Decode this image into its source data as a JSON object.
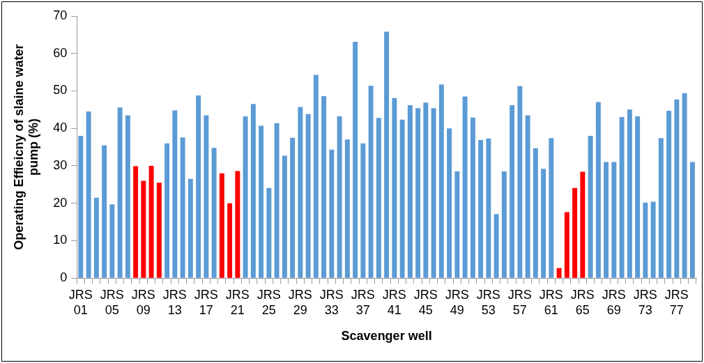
{
  "chart_data": {
    "type": "bar",
    "xlabel": "Scavenger well",
    "ylabel": "Operating Effieicny of slaine water pump (%)",
    "categories": [
      "JRS 01",
      null,
      null,
      null,
      "JRS 05",
      null,
      null,
      null,
      "JRS 09",
      null,
      null,
      null,
      "JRS 13",
      null,
      null,
      null,
      "JRS 17",
      null,
      null,
      null,
      "JRS 21",
      null,
      null,
      null,
      "JRS 25",
      null,
      null,
      null,
      "JRS 29",
      null,
      null,
      null,
      "JRS 33",
      null,
      null,
      null,
      "JRS 37",
      null,
      null,
      null,
      "JRS 41",
      null,
      null,
      null,
      "JRS 45",
      null,
      null,
      null,
      "JRS 49",
      null,
      null,
      null,
      "JRS 53",
      null,
      null,
      null,
      "JRS 57",
      null,
      null,
      null,
      "JRS 61",
      null,
      null,
      null,
      "JRS 65",
      null,
      null,
      null,
      "JRS 69",
      null,
      null,
      null,
      "JRS 73",
      null,
      null,
      null,
      "JRS 77",
      null,
      null
    ],
    "values": [
      38,
      44.5,
      21.5,
      35.5,
      19.7,
      45.6,
      43.5,
      29.9,
      26,
      30,
      25.5,
      36,
      44.8,
      37.6,
      26.5,
      48.8,
      43.5,
      34.8,
      28,
      20,
      28.6,
      43.2,
      46.5,
      40.7,
      24.1,
      41.4,
      32.7,
      37.5,
      45.7,
      43.8,
      54.3,
      48.6,
      34.3,
      43.2,
      37,
      63.1,
      36,
      51.4,
      42.8,
      65.8,
      48.1,
      42.3,
      46.2,
      45.4,
      46.9,
      45.4,
      51.7,
      40,
      28.5,
      48.5,
      42.9,
      36.9,
      37.3,
      17.1,
      28.5,
      46.2,
      51.3,
      43.5,
      34.7,
      29.2,
      37.4,
      2.7,
      17.6,
      24.1,
      28.4,
      38,
      47,
      31,
      31,
      43,
      45,
      43.2,
      20.2,
      20.4,
      37.4,
      44.7,
      47.7,
      49.4,
      31
    ],
    "colors": [
      "#5b9bd5",
      "#5b9bd5",
      "#5b9bd5",
      "#5b9bd5",
      "#5b9bd5",
      "#5b9bd5",
      "#5b9bd5",
      "#ff0000",
      "#ff0000",
      "#ff0000",
      "#ff0000",
      "#5b9bd5",
      "#5b9bd5",
      "#5b9bd5",
      "#5b9bd5",
      "#5b9bd5",
      "#5b9bd5",
      "#5b9bd5",
      "#ff0000",
      "#ff0000",
      "#ff0000",
      "#5b9bd5",
      "#5b9bd5",
      "#5b9bd5",
      "#5b9bd5",
      "#5b9bd5",
      "#5b9bd5",
      "#5b9bd5",
      "#5b9bd5",
      "#5b9bd5",
      "#5b9bd5",
      "#5b9bd5",
      "#5b9bd5",
      "#5b9bd5",
      "#5b9bd5",
      "#5b9bd5",
      "#5b9bd5",
      "#5b9bd5",
      "#5b9bd5",
      "#5b9bd5",
      "#5b9bd5",
      "#5b9bd5",
      "#5b9bd5",
      "#5b9bd5",
      "#5b9bd5",
      "#5b9bd5",
      "#5b9bd5",
      "#5b9bd5",
      "#5b9bd5",
      "#5b9bd5",
      "#5b9bd5",
      "#5b9bd5",
      "#5b9bd5",
      "#5b9bd5",
      "#5b9bd5",
      "#5b9bd5",
      "#5b9bd5",
      "#5b9bd5",
      "#5b9bd5",
      "#5b9bd5",
      "#5b9bd5",
      "#ff0000",
      "#ff0000",
      "#ff0000",
      "#ff0000",
      "#5b9bd5",
      "#5b9bd5",
      "#5b9bd5",
      "#5b9bd5",
      "#5b9bd5",
      "#5b9bd5",
      "#5b9bd5",
      "#5b9bd5",
      "#5b9bd5",
      "#5b9bd5",
      "#5b9bd5",
      "#5b9bd5",
      "#5b9bd5",
      "#5b9bd5"
    ],
    "ylim": [
      0,
      70
    ],
    "yticks": [
      0,
      10,
      20,
      30,
      40,
      50,
      60,
      70
    ],
    "grid": false,
    "legend": false
  }
}
